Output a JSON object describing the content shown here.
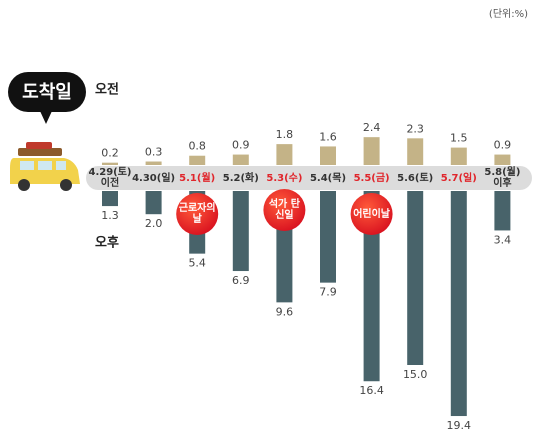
{
  "chart_data": {
    "type": "diverging-bar",
    "unit_note": "(단위:%)",
    "badge": "도착일",
    "categories": [
      "4.29(토) 이전",
      "4.30(일)",
      "5.1(월)",
      "5.2(화)",
      "5.3(수)",
      "5.4(목)",
      "5.5(금)",
      "5.6(토)",
      "5.7(일)",
      "5.8(월) 이후"
    ],
    "highlight_categories": [
      "5.1(월)",
      "5.3(수)",
      "5.5(금)",
      "5.7(일)"
    ],
    "highlight_color": "#e0262c",
    "series": [
      {
        "name": "오전",
        "color": "#c4b387",
        "direction": "up",
        "values": [
          0.2,
          0.3,
          0.8,
          0.9,
          1.8,
          1.6,
          2.4,
          2.3,
          1.5,
          0.9
        ],
        "value_labels": [
          "0.2",
          "0.3",
          "0.8",
          "0.9",
          "1.8",
          "1.6",
          "2.4",
          "2.3",
          "1.5",
          "0.9"
        ]
      },
      {
        "name": "오후",
        "color": "#48636a",
        "direction": "down",
        "values": [
          1.3,
          2.0,
          5.4,
          6.9,
          9.6,
          7.9,
          16.4,
          15.0,
          19.4,
          3.4
        ],
        "value_labels": [
          "1.3",
          "2.0",
          "5.4",
          "6.9",
          "9.6",
          "7.9",
          "16.4",
          "15.0",
          "19.4",
          "3.4"
        ]
      }
    ],
    "annotations": [
      {
        "text": "근로자의 날",
        "category": "5.1(월)"
      },
      {
        "text": "석가 탄신일",
        "category": "5.3(수)"
      },
      {
        "text": "어린이날",
        "category": "5.5(금)"
      }
    ]
  }
}
